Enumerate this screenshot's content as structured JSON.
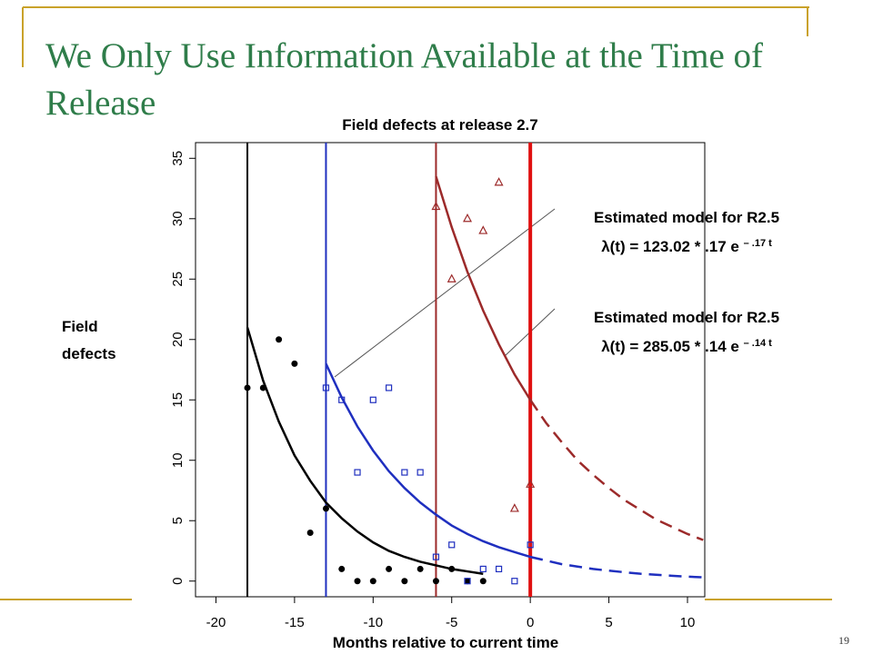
{
  "slide": {
    "title": "We Only Use Information Available at the Time of Release",
    "page_number": "19"
  },
  "chart_data": {
    "type": "scatter",
    "title": "Field defects at release 2.7",
    "x_label": "Months relative to current time",
    "y_label": "Field defects",
    "xlim": [
      -21.3,
      11.1
    ],
    "ylim": [
      -1.3,
      36.3
    ],
    "xticks": [
      -20,
      -15,
      -10,
      -5,
      0,
      5,
      10
    ],
    "yticks": [
      0,
      5,
      10,
      15,
      20,
      25,
      30,
      35
    ],
    "series": [
      {
        "marker": "circle",
        "color": "#000000",
        "x": [
          -18,
          -17,
          -16,
          -15,
          -14,
          -13,
          -12,
          -11,
          -10,
          -9,
          -8,
          -7,
          -6,
          -5,
          -4,
          -3
        ],
        "values": [
          16,
          16,
          20,
          18,
          4,
          6,
          1,
          0,
          0,
          1,
          0,
          1,
          0,
          1,
          0,
          0
        ]
      },
      {
        "marker": "square",
        "color": "#1f2fbf",
        "x": [
          -13,
          -12,
          -11,
          -10,
          -9,
          -8,
          -7,
          -6,
          -5,
          -4,
          -3,
          -2,
          -1,
          0
        ],
        "values": [
          16,
          15,
          9,
          15,
          16,
          9,
          9,
          2,
          3,
          0,
          1,
          1,
          0,
          3
        ]
      },
      {
        "marker": "triangle",
        "color": "#9c2a2a",
        "x": [
          -6,
          -5,
          -4,
          -3,
          -2,
          -1,
          0
        ],
        "values": [
          31,
          25,
          30,
          29,
          33,
          6,
          8
        ]
      }
    ],
    "vlines": [
      {
        "x": -18,
        "color": "#000000",
        "width": 2
      },
      {
        "x": -13,
        "color": "#1f2fbf",
        "width": 2
      },
      {
        "x": -6,
        "color": "#9c2a2a",
        "width": 2
      },
      {
        "x": 0,
        "color": "#e01010",
        "width": 4
      }
    ],
    "fits": [
      {
        "color": "#000000",
        "dashed": false,
        "x": [
          -18,
          -17,
          -16,
          -15,
          -14,
          -13,
          -12,
          -11,
          -10,
          -9,
          -8,
          -7,
          -6,
          -5,
          -4,
          -3
        ],
        "values": [
          21,
          16.6,
          13.2,
          10.4,
          8.3,
          6.5,
          5.2,
          4.1,
          3.2,
          2.5,
          2.0,
          1.6,
          1.3,
          1.0,
          0.8,
          0.6
        ]
      },
      {
        "color": "#1f2fbf",
        "dashed": false,
        "x": [
          -13,
          -12,
          -11,
          -10,
          -9,
          -8,
          -7,
          -6,
          -5,
          -4,
          -3,
          -2,
          -1,
          0
        ],
        "values": [
          18,
          15.2,
          12.8,
          10.8,
          9.1,
          7.7,
          6.5,
          5.5,
          4.6,
          3.9,
          3.3,
          2.8,
          2.4,
          2.0
        ]
      },
      {
        "color": "#1f2fbf",
        "dashed": true,
        "x": [
          0,
          1,
          2,
          3,
          4,
          5,
          6,
          7,
          8,
          9,
          10,
          11
        ],
        "values": [
          2.0,
          1.7,
          1.4,
          1.2,
          1.0,
          0.86,
          0.73,
          0.61,
          0.52,
          0.44,
          0.37,
          0.31
        ]
      },
      {
        "color": "#9c2a2a",
        "dashed": false,
        "x": [
          -6,
          -5,
          -4,
          -3,
          -2,
          -1,
          0
        ],
        "values": [
          33.5,
          29.3,
          25.6,
          22.4,
          19.6,
          17.1,
          15.0
        ]
      },
      {
        "color": "#9c2a2a",
        "dashed": true,
        "x": [
          0,
          1,
          2,
          3,
          4,
          5,
          6,
          7,
          8,
          9,
          10,
          11
        ],
        "values": [
          15.0,
          13.1,
          11.5,
          10.0,
          8.8,
          7.7,
          6.7,
          5.9,
          5.1,
          4.5,
          3.9,
          3.4
        ]
      }
    ],
    "annotations": [
      {
        "title": "Estimated model for R2.5",
        "formula": "λ(t) = 123.02 * .17 e",
        "exponent": "– .17 t"
      },
      {
        "title": "Estimated model for R2.5",
        "formula": "λ(t) = 285.05 * .14 e",
        "exponent": "– .14 t"
      }
    ]
  }
}
